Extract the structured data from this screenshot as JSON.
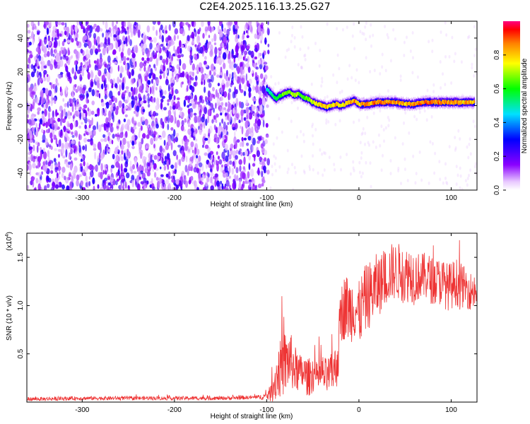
{
  "title": "C2E4.2025.116.13.25.G27",
  "chart_data": [
    {
      "type": "heatmap",
      "xlabel": "Height of straight line (km)",
      "ylabel": "Frequency (Hz)",
      "xlim": [
        -360,
        128
      ],
      "ylim": [
        -50,
        50
      ],
      "xticks": [
        -300,
        -200,
        -100,
        0,
        100
      ],
      "yticks": [
        -40,
        -20,
        0,
        20,
        40
      ],
      "colorbar": {
        "label": "Normalized spectral amplitude",
        "range": [
          0.0,
          1.0
        ],
        "ticks": [
          0.0,
          0.2,
          0.4,
          0.6,
          0.8
        ],
        "tick_labels": [
          "0.0",
          "0.2",
          "0.4",
          "0.6",
          "0.8"
        ]
      },
      "noise_region_x": [
        -360,
        -98
      ],
      "signal_track": {
        "x": [
          -100,
          -95,
          -90,
          -85,
          -80,
          -75,
          -70,
          -65,
          -60,
          -55,
          -50,
          -45,
          -40,
          -35,
          -30,
          -25,
          -20,
          -15,
          -10,
          -5,
          0,
          10,
          20,
          30,
          40,
          50,
          60,
          70,
          80,
          90,
          100,
          110,
          125
        ],
        "freq": [
          10,
          7,
          4,
          6,
          7,
          8,
          6,
          7,
          5,
          4,
          2,
          1,
          0,
          -1,
          0,
          1,
          0,
          1,
          2,
          3,
          1,
          1,
          2,
          2,
          2,
          1,
          1,
          2,
          2,
          2,
          2,
          2,
          2
        ],
        "amplitude": [
          0.5,
          0.55,
          0.6,
          0.65,
          0.7,
          0.7,
          0.75,
          0.7,
          0.65,
          0.7,
          0.75,
          0.8,
          0.85,
          0.85,
          0.8,
          0.85,
          0.8,
          0.85,
          0.85,
          0.9,
          0.85,
          0.9,
          0.9,
          0.9,
          0.9,
          0.85,
          0.9,
          0.9,
          0.9,
          0.9,
          0.9,
          0.85,
          0.85
        ]
      }
    },
    {
      "type": "line",
      "xlabel": "Height of straight line (km)",
      "ylabel": "SNR (10 * v/v)",
      "y_scale_note": "(x10^4)",
      "y_multiplier_base": "(x10",
      "y_multiplier_exp": "4",
      "xlim": [
        -360,
        128
      ],
      "ylim": [
        0.0,
        1.75
      ],
      "xticks": [
        -300,
        -200,
        -100,
        0,
        100
      ],
      "yticks": [
        0.5,
        1.0,
        1.5
      ],
      "ytick_labels": [
        "0.5",
        "1.0",
        "1.5"
      ],
      "series": [
        {
          "color": "#ee3333",
          "x": [
            -360,
            -300,
            -250,
            -200,
            -150,
            -110,
            -100,
            -95,
            -90,
            -85,
            -80,
            -75,
            -70,
            -65,
            -60,
            -55,
            -50,
            -45,
            -40,
            -35,
            -30,
            -25,
            -22,
            -20,
            -15,
            -10,
            -5,
            0,
            5,
            10,
            15,
            20,
            25,
            30,
            35,
            40,
            45,
            50,
            55,
            60,
            65,
            70,
            75,
            80,
            85,
            90,
            95,
            100,
            105,
            110,
            115,
            120,
            128
          ],
          "y": [
            0.03,
            0.04,
            0.04,
            0.04,
            0.04,
            0.05,
            0.06,
            0.1,
            0.25,
            0.35,
            0.4,
            0.45,
            0.35,
            0.3,
            0.3,
            0.25,
            0.3,
            0.25,
            0.3,
            0.25,
            0.3,
            0.35,
            0.55,
            0.9,
            1.0,
            0.95,
            1.0,
            0.9,
            1.05,
            1.1,
            1.15,
            1.2,
            1.25,
            1.3,
            1.35,
            1.35,
            1.35,
            1.3,
            1.35,
            1.3,
            1.3,
            1.3,
            1.3,
            1.25,
            1.25,
            1.25,
            1.2,
            1.2,
            1.25,
            1.2,
            1.2,
            1.15,
            1.15
          ],
          "band": [
            0.02,
            0.02,
            0.02,
            0.02,
            0.02,
            0.02,
            0.04,
            0.1,
            0.25,
            0.3,
            0.35,
            0.3,
            0.25,
            0.2,
            0.2,
            0.2,
            0.2,
            0.15,
            0.2,
            0.2,
            0.2,
            0.25,
            0.3,
            0.3,
            0.35,
            0.35,
            0.35,
            0.35,
            0.35,
            0.35,
            0.35,
            0.35,
            0.3,
            0.3,
            0.3,
            0.3,
            0.3,
            0.3,
            0.3,
            0.3,
            0.25,
            0.25,
            0.25,
            0.25,
            0.25,
            0.25,
            0.25,
            0.25,
            0.25,
            0.25,
            0.2,
            0.2,
            0.2
          ]
        }
      ]
    }
  ]
}
